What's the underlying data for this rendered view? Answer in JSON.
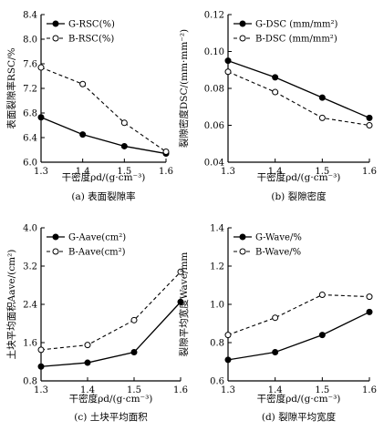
{
  "chart_data": [
    {
      "type": "line",
      "caption": "(a) 表面裂隙率",
      "xlabel": "干密度ρd/(g·cm⁻³)",
      "ylabel": "表面裂隙率RSC/%",
      "xlim": [
        1.3,
        1.6
      ],
      "ylim": [
        6.0,
        8.4
      ],
      "xticks": [
        "1.3",
        "1.4",
        "1.5",
        "1.6"
      ],
      "yticks": [
        "6.0",
        "6.4",
        "6.8",
        "7.2",
        "7.6",
        "8.0",
        "8.4"
      ],
      "legend_position": "top-left",
      "x": [
        1.3,
        1.4,
        1.5,
        1.6
      ],
      "series": [
        {
          "name": "G-RSC(%)",
          "style": "solid-filled",
          "values": [
            6.73,
            6.45,
            6.26,
            6.14
          ]
        },
        {
          "name": "B-RSC(%)",
          "style": "dashed-hollow",
          "values": [
            7.54,
            7.27,
            6.64,
            6.17
          ]
        }
      ]
    },
    {
      "type": "line",
      "caption": "(b) 裂隙密度",
      "xlabel": "干密度ρd/(g·cm⁻³)",
      "ylabel": "裂隙密度DSC/(mm·mm⁻²)",
      "xlim": [
        1.3,
        1.6
      ],
      "ylim": [
        0.04,
        0.12
      ],
      "xticks": [
        "1.3",
        "1.4",
        "1.5",
        "1.6"
      ],
      "yticks": [
        "0.04",
        "0.06",
        "0.08",
        "0.10",
        "0.12"
      ],
      "legend_position": "top-left",
      "x": [
        1.3,
        1.4,
        1.5,
        1.6
      ],
      "series": [
        {
          "name": "G-DSC (mm/mm²)",
          "style": "solid-filled",
          "values": [
            0.095,
            0.086,
            0.075,
            0.064
          ]
        },
        {
          "name": "B-DSC (mm/mm²)",
          "style": "dashed-hollow",
          "values": [
            0.089,
            0.078,
            0.064,
            0.06
          ]
        }
      ]
    },
    {
      "type": "line",
      "caption": "(c) 土块平均面积",
      "xlabel": "干密度ρd/(g·cm⁻³)",
      "ylabel": "土块平均面积Aave/(cm²)",
      "xlim": [
        1.3,
        1.6
      ],
      "ylim": [
        0.8,
        4.0
      ],
      "xticks": [
        "1.3",
        "1.4",
        "1.5",
        "1.6"
      ],
      "yticks": [
        "0.8",
        "1.6",
        "2.4",
        "3.2",
        "4.0"
      ],
      "legend_position": "top-left",
      "x": [
        1.3,
        1.4,
        1.5,
        1.6
      ],
      "series": [
        {
          "name": "G-Aave(cm²)",
          "style": "solid-filled",
          "values": [
            1.1,
            1.18,
            1.4,
            2.45
          ]
        },
        {
          "name": "B-Aave(cm²)",
          "style": "dashed-hollow",
          "values": [
            1.45,
            1.55,
            2.07,
            3.08
          ]
        }
      ]
    },
    {
      "type": "line",
      "caption": "(d) 裂隙平均宽度",
      "xlabel": "干密度ρd/(g·cm⁻³)",
      "ylabel": "裂隙平均宽度Wave/mm",
      "xlim": [
        1.3,
        1.6
      ],
      "ylim": [
        0.6,
        1.4
      ],
      "xticks": [
        "1.3",
        "1.4",
        "1.5",
        "1.6"
      ],
      "yticks": [
        "0.6",
        "0.8",
        "1.0",
        "1.2",
        "1.4"
      ],
      "legend_position": "top-left",
      "x": [
        1.3,
        1.4,
        1.5,
        1.6
      ],
      "series": [
        {
          "name": "G-Wave/%",
          "style": "solid-filled",
          "values": [
            0.71,
            0.75,
            0.84,
            0.96
          ]
        },
        {
          "name": "B-Wave/%",
          "style": "dashed-hollow",
          "values": [
            0.84,
            0.93,
            1.05,
            1.04
          ]
        }
      ]
    }
  ]
}
